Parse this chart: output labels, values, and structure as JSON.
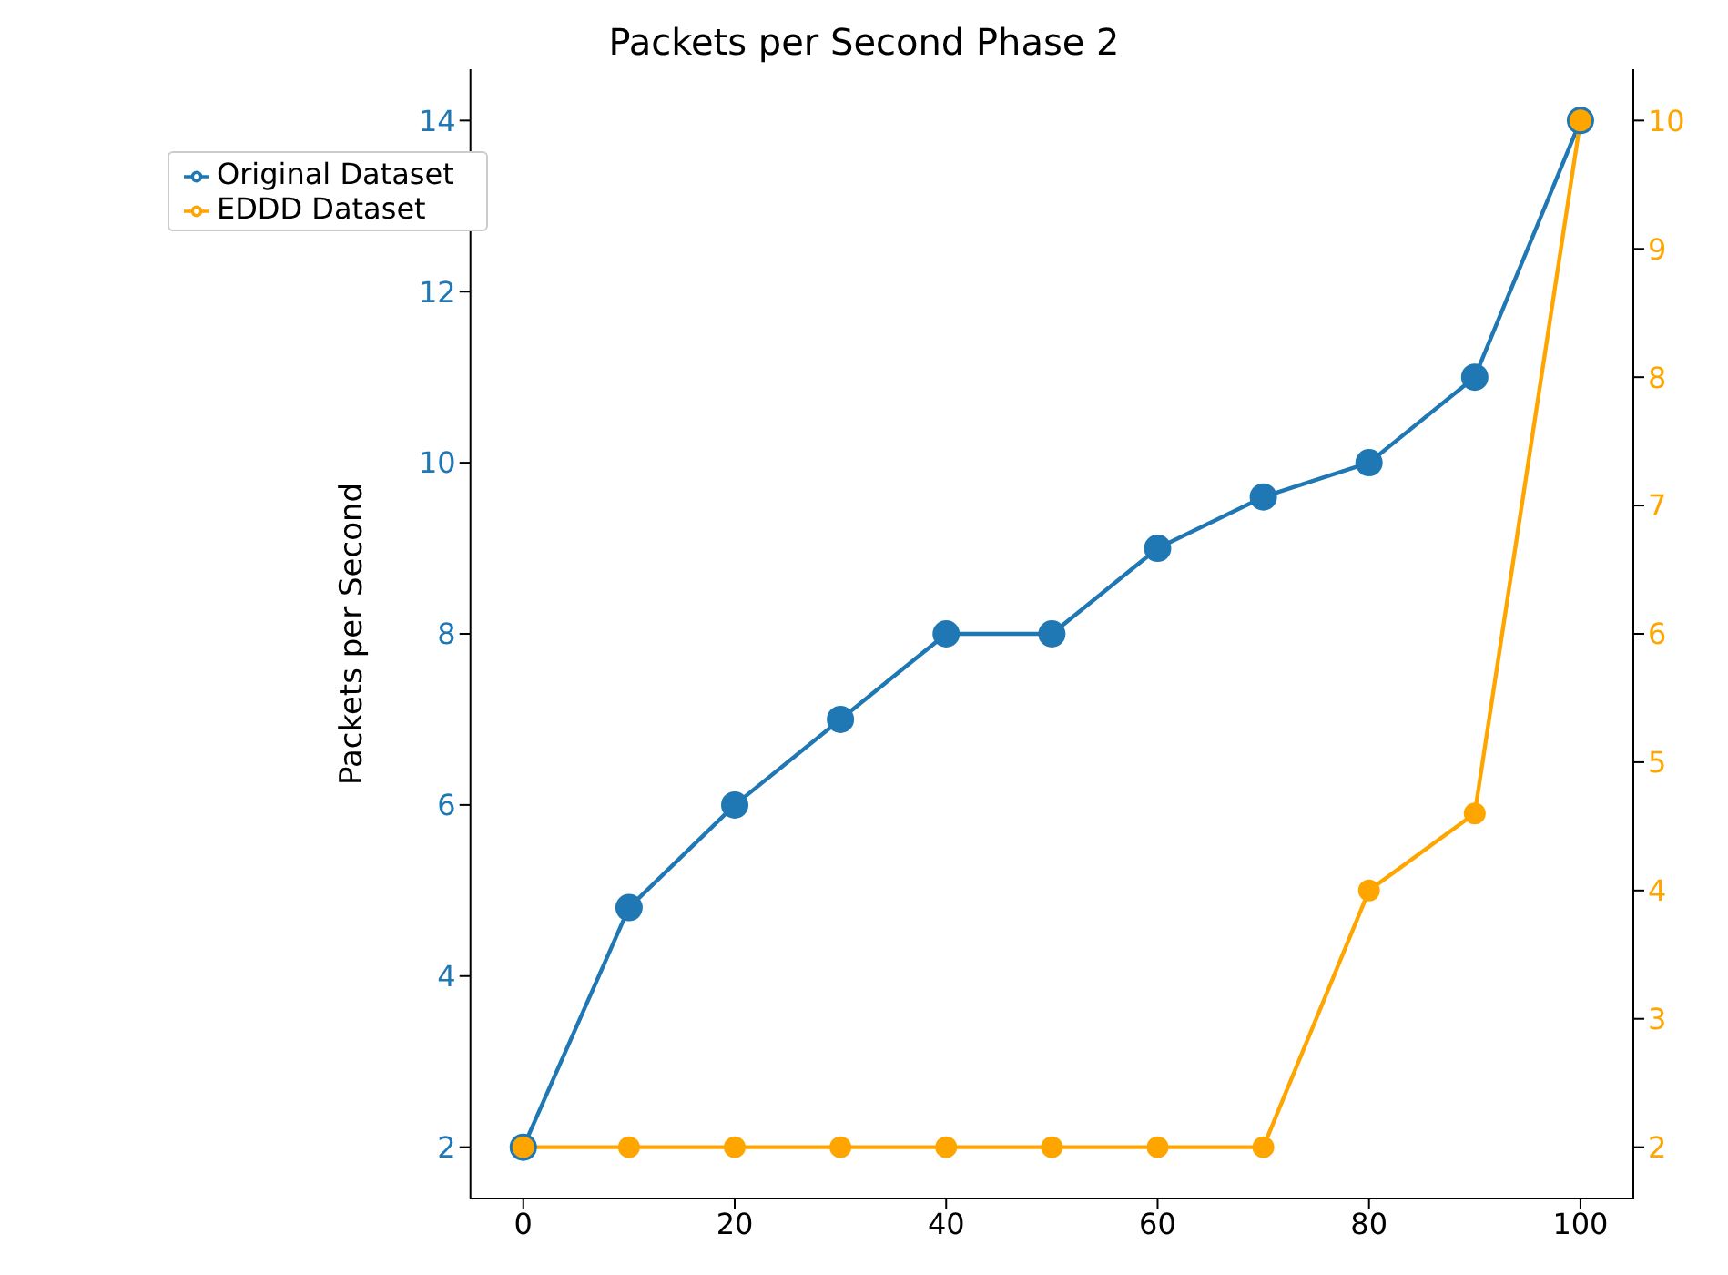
{
  "chart_data": {
    "type": "line",
    "title": "Packets per Second Phase 2",
    "ylabel": "Packets per Second",
    "x": [
      0,
      10,
      20,
      30,
      40,
      50,
      60,
      70,
      80,
      90,
      100
    ],
    "series": [
      {
        "name": "Original Dataset",
        "color": "#1f77b4",
        "values": [
          2,
          4.8,
          6,
          7,
          8,
          8,
          9,
          9.6,
          10,
          11,
          14
        ]
      },
      {
        "name": "EDDD Dataset",
        "color": "#ffa500",
        "axis": "y2",
        "values": [
          2,
          2,
          2,
          2,
          2,
          2,
          2,
          2,
          4,
          4.6,
          10
        ]
      }
    ],
    "xlim": [
      -5,
      105
    ],
    "xticks": [
      0,
      20,
      40,
      60,
      80,
      100
    ],
    "ylim": [
      1.4,
      14.6
    ],
    "yticks": [
      2,
      4,
      6,
      8,
      10,
      12,
      14
    ],
    "y2lim": [
      1.6,
      10.4
    ],
    "y2ticks": [
      2,
      3,
      4,
      5,
      6,
      7,
      8,
      9,
      10
    ],
    "legend": "top left",
    "marker": "circle",
    "line_style": "solid",
    "grid": false
  }
}
